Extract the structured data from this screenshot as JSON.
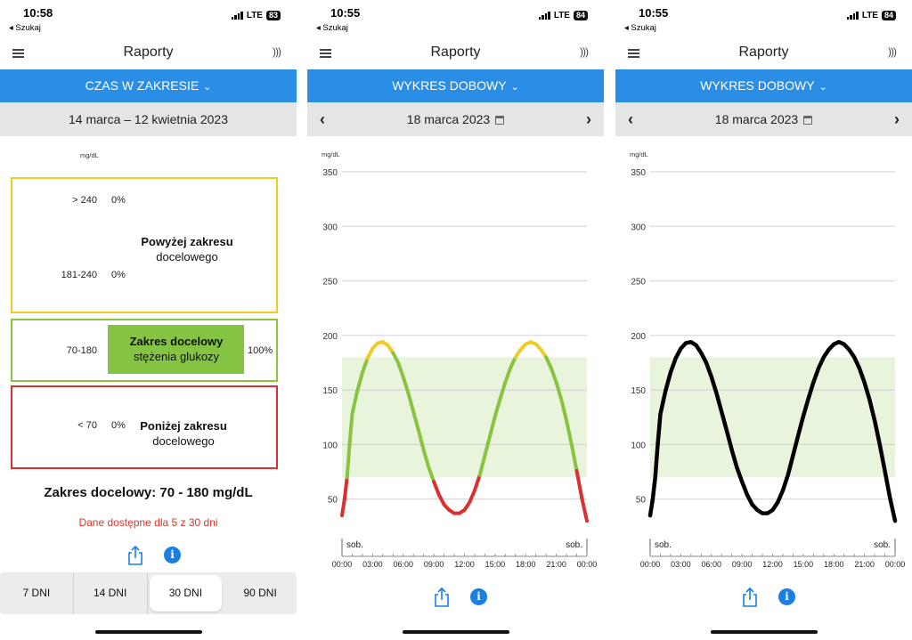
{
  "colors": {
    "header_blue": "#2b8ee6",
    "above": "#f0cb25",
    "target": "#88c43f",
    "below": "#dc2f2f",
    "band": "#e8f4dc"
  },
  "phones": [
    {
      "time": "10:58",
      "back": "◂ Szukaj",
      "network": "LTE",
      "battery": "83"
    },
    {
      "time": "10:55",
      "back": "◂ Szukaj",
      "network": "LTE",
      "battery": "84"
    },
    {
      "time": "10:55",
      "back": "◂ Szukaj",
      "network": "LTE",
      "battery": "84"
    }
  ],
  "nav": {
    "title": "Raporty"
  },
  "screen1": {
    "report": "CZAS W ZAKRESIE",
    "period": "14 marca – 12 kwietnia 2023",
    "unit": "mg/dL",
    "above": {
      "r1": "> 240",
      "v1": "0%",
      "r2": "181-240",
      "v2": "0%",
      "title1": "Powyżej zakresu",
      "title2": "docelowego"
    },
    "target": {
      "range": "70-180",
      "title1": "Zakres docelowy",
      "title2": "stężenia glukozy",
      "value": "100%"
    },
    "below": {
      "range": "< 70",
      "value": "0%",
      "title1": "Poniżej zakresu",
      "title2": "docelowego"
    },
    "summary": "Zakres docelowy: 70 - 180 mg/dL",
    "availability": "Dane dostępne dla 5 z 30 dni",
    "tabs": [
      "7 DNI",
      "14 DNI",
      "30 DNI",
      "90 DNI"
    ],
    "active_tab": "30 DNI"
  },
  "screen2": {
    "report": "WYKRES DOBOWY",
    "date": "18 marca 2023"
  },
  "screen3": {
    "report": "WYKRES DOBOWY",
    "date": "18 marca 2023"
  },
  "chart_data": [
    {
      "type": "line",
      "ylabel": "mg/dL",
      "ylim": [
        0,
        350
      ],
      "yticks": [
        50,
        100,
        150,
        200,
        250,
        300,
        350
      ],
      "target_range": [
        70,
        180
      ],
      "day_label_start": "sob.",
      "day_label_end": "sob.",
      "xticks": [
        "00:00",
        "03:00",
        "06:00",
        "09:00",
        "12:00",
        "15:00",
        "18:00",
        "21:00",
        "00:00"
      ],
      "x_hours": [
        0.0,
        0.25,
        0.5,
        0.75,
        1.0,
        1.5,
        2.0,
        2.5,
        3.0,
        3.5,
        4.0,
        4.5,
        5.0,
        5.5,
        6.0,
        6.5,
        7.0,
        7.5,
        8.0,
        8.5,
        9.0,
        9.5,
        10.0,
        10.5,
        11.0,
        11.5,
        12.0,
        12.5,
        13.0,
        13.5,
        14.0,
        14.5,
        15.0,
        15.5,
        16.0,
        16.5,
        17.0,
        17.5,
        18.0,
        18.5,
        19.0,
        19.5,
        20.0,
        20.5,
        21.0,
        21.5,
        22.0,
        22.5,
        23.0,
        23.5,
        24.0
      ],
      "y": [
        35,
        50,
        70,
        101,
        128,
        149,
        166,
        179,
        188,
        193,
        194,
        191,
        184,
        175,
        162,
        147,
        130,
        113,
        95,
        79,
        66,
        54,
        45,
        40,
        37,
        37,
        40,
        47,
        58,
        72,
        90,
        108,
        126,
        142,
        157,
        170,
        180,
        187,
        192,
        194,
        192,
        187,
        180,
        170,
        157,
        141,
        122,
        100,
        76,
        51,
        30
      ],
      "colored_by_range": true
    },
    {
      "type": "line",
      "ylabel": "mg/dL",
      "ylim": [
        0,
        350
      ],
      "yticks": [
        50,
        100,
        150,
        200,
        250,
        300,
        350
      ],
      "target_range": [
        70,
        180
      ],
      "day_label_start": "sob.",
      "day_label_end": "sob.",
      "xticks": [
        "00:00",
        "03:00",
        "06:00",
        "09:00",
        "12:00",
        "15:00",
        "18:00",
        "21:00",
        "00:00"
      ],
      "x_hours": [
        0.0,
        0.25,
        0.5,
        0.75,
        1.0,
        1.5,
        2.0,
        2.5,
        3.0,
        3.5,
        4.0,
        4.5,
        5.0,
        5.5,
        6.0,
        6.5,
        7.0,
        7.5,
        8.0,
        8.5,
        9.0,
        9.5,
        10.0,
        10.5,
        11.0,
        11.5,
        12.0,
        12.5,
        13.0,
        13.5,
        14.0,
        14.5,
        15.0,
        15.5,
        16.0,
        16.5,
        17.0,
        17.5,
        18.0,
        18.5,
        19.0,
        19.5,
        20.0,
        20.5,
        21.0,
        21.5,
        22.0,
        22.5,
        23.0,
        23.5,
        24.0
      ],
      "y": [
        35,
        50,
        70,
        101,
        128,
        149,
        166,
        179,
        188,
        193,
        194,
        191,
        184,
        175,
        162,
        147,
        130,
        113,
        95,
        79,
        66,
        54,
        45,
        40,
        37,
        37,
        40,
        47,
        58,
        72,
        90,
        108,
        126,
        142,
        157,
        170,
        180,
        187,
        192,
        194,
        192,
        187,
        180,
        170,
        157,
        141,
        122,
        100,
        76,
        51,
        30
      ],
      "colored_by_range": false,
      "line_color": "#000000"
    }
  ]
}
